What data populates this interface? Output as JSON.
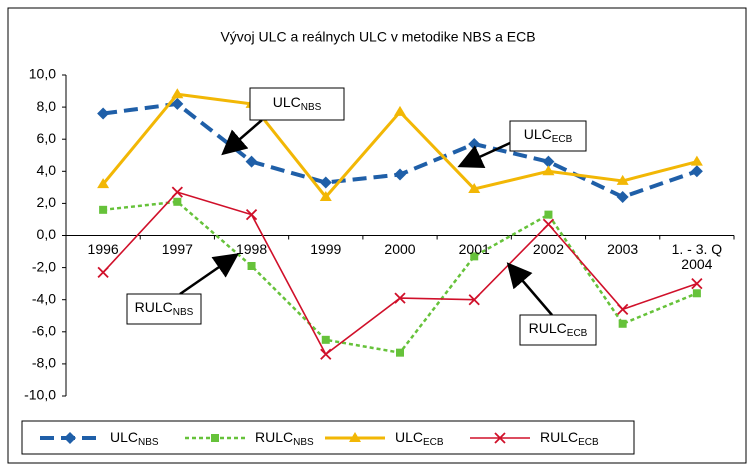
{
  "chart_data": {
    "type": "line",
    "title": "Vývoj ULC a reálnych ULC v metodike NBS a ECB",
    "categories": [
      "1996",
      "1997",
      "1998",
      "1999",
      "2000",
      "2001",
      "2002",
      "2003",
      "1. - 3. Q 2004"
    ],
    "ylim": [
      -10,
      10
    ],
    "yticks": [
      {
        "value": -10,
        "label": "-10,0"
      },
      {
        "value": -8,
        "label": "-8,0"
      },
      {
        "value": -6,
        "label": "-6,0"
      },
      {
        "value": -4,
        "label": "-4,0"
      },
      {
        "value": -2,
        "label": "-2,0"
      },
      {
        "value": 0,
        "label": "0,0"
      },
      {
        "value": 2,
        "label": "2,0"
      },
      {
        "value": 4,
        "label": "4,0"
      },
      {
        "value": 6,
        "label": "6,0"
      },
      {
        "value": 8,
        "label": "8,0"
      },
      {
        "value": 10,
        "label": "10,0"
      }
    ],
    "grid": false,
    "legend": "bottom",
    "series": [
      {
        "name": "ULC",
        "name_sub": "NBS",
        "color": "#1f5fa8",
        "style": "dashed",
        "marker": "diamond",
        "values": [
          7.6,
          8.2,
          4.6,
          3.3,
          3.8,
          5.7,
          4.6,
          2.4,
          4.0
        ]
      },
      {
        "name": "RULC",
        "name_sub": "NBS",
        "color": "#66c23a",
        "style": "dotted",
        "marker": "square",
        "values": [
          1.6,
          2.1,
          -1.9,
          -6.5,
          -7.3,
          -1.3,
          1.3,
          -5.5,
          -3.6
        ]
      },
      {
        "name": "ULC",
        "name_sub": "ECB",
        "color": "#f2b705",
        "style": "solid",
        "marker": "triangle",
        "values": [
          3.2,
          8.8,
          8.2,
          2.4,
          7.7,
          2.9,
          4.0,
          3.4,
          4.6
        ]
      },
      {
        "name": "RULC",
        "name_sub": "ECB",
        "color": "#d0102a",
        "style": "thin",
        "marker": "x",
        "values": [
          -2.3,
          2.7,
          1.3,
          -7.4,
          -3.9,
          -4.0,
          0.7,
          -4.6,
          -3.0
        ]
      }
    ],
    "annotations": [
      {
        "text": "ULC",
        "sub": "NBS"
      },
      {
        "text": "ULC",
        "sub": "ECB"
      },
      {
        "text": "RULC",
        "sub": "NBS"
      },
      {
        "text": "RULC",
        "sub": "ECB"
      }
    ]
  }
}
